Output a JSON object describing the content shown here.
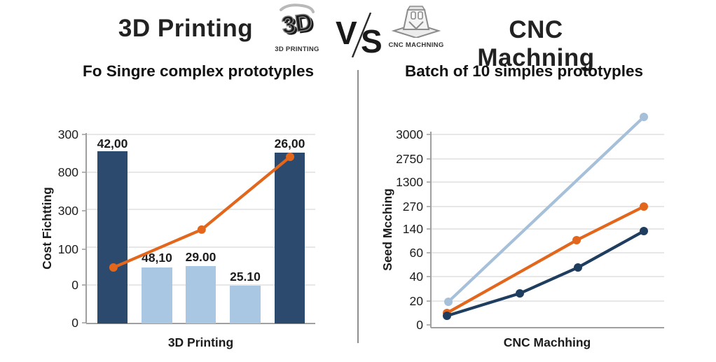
{
  "header": {
    "left_title": "3D Printing",
    "right_title": "CNC Machning",
    "vs_label": "VS",
    "icon_3d": {
      "letters": "3D",
      "caption": "3D PRINTING"
    },
    "icon_cnc": {
      "caption": "CNC MACHNING"
    }
  },
  "subtitles": {
    "left": "Fo Singre complex prototyples",
    "right": "Batch of 10 simples prototyples"
  },
  "colors": {
    "dark_bar": "#2b4a6d",
    "light_bar": "#a9c6e3",
    "orange": "#e2661c",
    "light_blue": "#a6c0d9",
    "navy": "#1e3d5f",
    "grid": "#dfdfdf",
    "axis": "#a0a0a0",
    "text": "#1c1c1c",
    "icon_grey": "#9a9a9a"
  },
  "chart_data": [
    {
      "type": "bar",
      "title": "Fo Singre complex prototyples",
      "xlabel": "3D Printing",
      "ylabel": "Cost Fichtting",
      "y_tick_labels": [
        "300",
        "800",
        "300",
        "100",
        "0",
        "0"
      ],
      "grid": true,
      "bars": {
        "labels": [
          "42,00",
          "48,10",
          "29.00",
          "25.10",
          "26,00"
        ],
        "values": [
          42.0,
          48.1,
          29.0,
          25.1,
          26.0
        ],
        "series": [
          "dark",
          "light",
          "light",
          "light",
          "dark"
        ]
      },
      "line": {
        "name": "trend-line",
        "color_key": "orange",
        "points_norm": [
          [
            0.119,
            0.294
          ],
          [
            0.504,
            0.493
          ],
          [
            0.89,
            0.875
          ]
        ]
      }
    },
    {
      "type": "line",
      "title": "Batch of 10 simples prototyples",
      "xlabel": "CNC Machhing",
      "ylabel": "Seed Mcching",
      "y_tick_labels": [
        "3000",
        "2750",
        "1300",
        "270",
        "140",
        "60",
        "40",
        "20",
        "0"
      ],
      "grid": true,
      "series": [
        {
          "name": "light-blue-line",
          "color_key": "light_blue",
          "values_est": [
            20,
            3300
          ]
        },
        {
          "name": "orange-line",
          "color_key": "orange",
          "values_est": [
            13,
            110,
            270
          ]
        },
        {
          "name": "navy-line",
          "color_key": "navy",
          "values_est": [
            10,
            28,
            47,
            140
          ]
        }
      ]
    }
  ]
}
